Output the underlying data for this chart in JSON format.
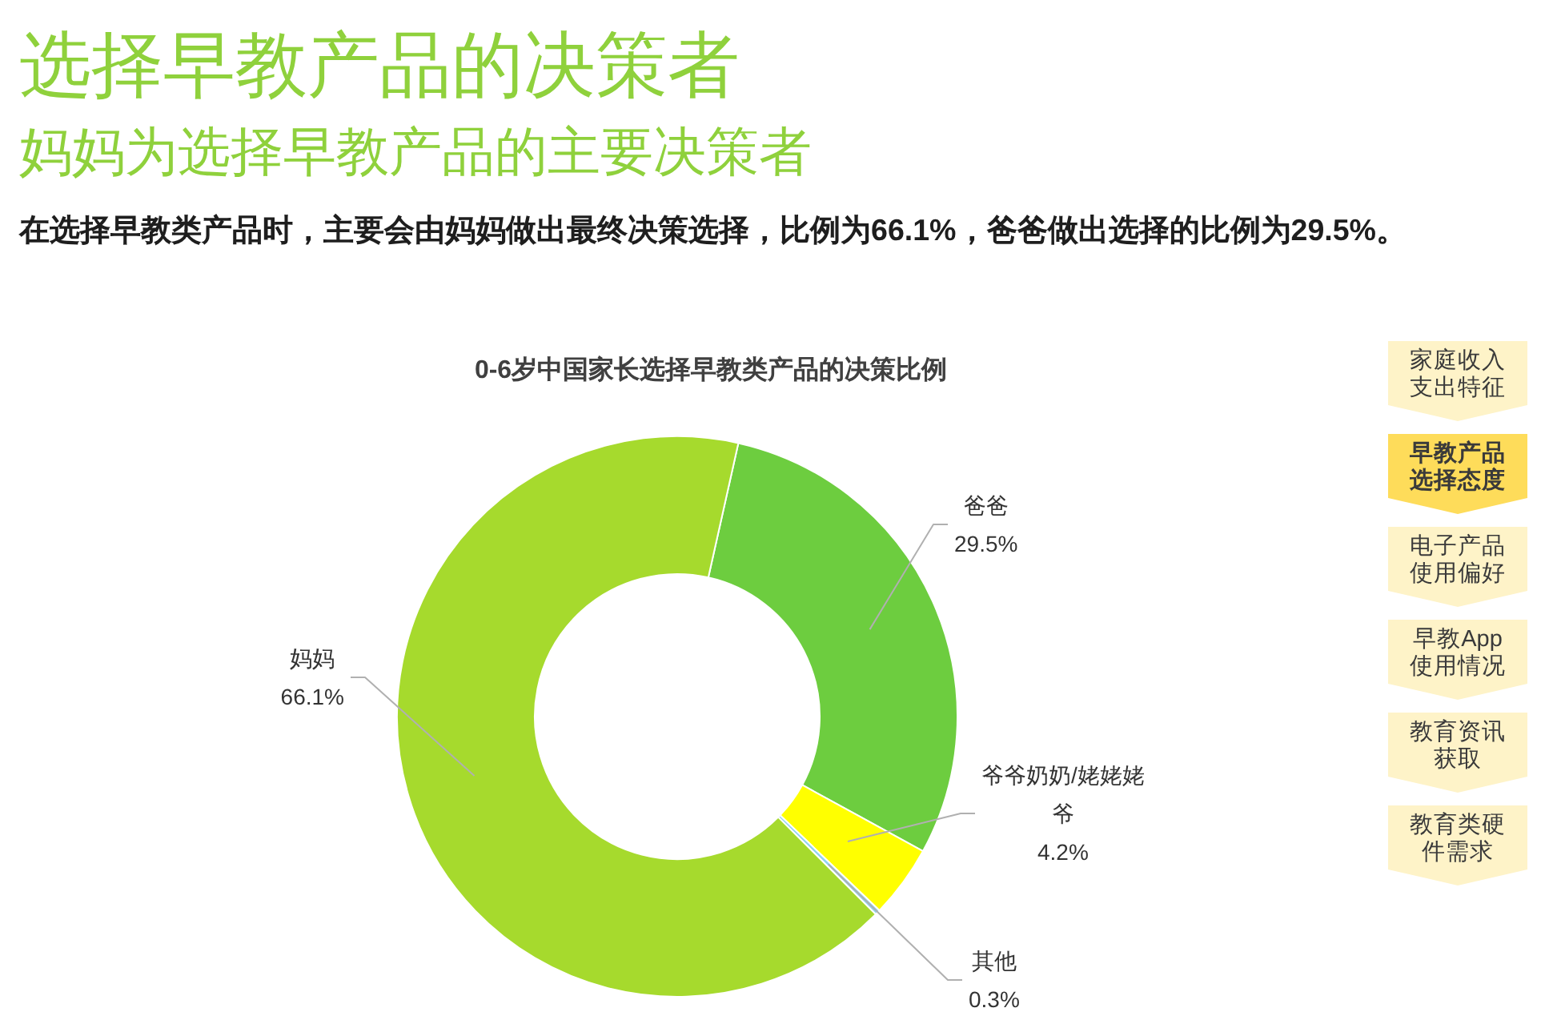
{
  "chart_data": [
    {
      "type": "donut",
      "title": "选择早教产品的决策者",
      "subtitle": "妈妈为选择早教产品的主要决策者",
      "annotations": [
        "在选择早教类产品时，主要会由妈妈做出最终决策选择，比例为66.1%，爸爸做出选择的比例为29.5%。",
        "0-6岁中国家长选择早教类产品的决策比例"
      ],
      "categories": [
        "爸爸",
        "爷爷奶奶/姥姥姥爷",
        "其他",
        "妈妈"
      ],
      "values": [
        29.5,
        4.2,
        0.3,
        66.1
      ],
      "value_labels": [
        "29.5%",
        "4.2%",
        "0.3%",
        "66.1%"
      ],
      "colors": [
        "#6dcd3f",
        "#ffff00",
        "#8fd3f0",
        "#a6da2d"
      ]
    },
    {
      "type": "other",
      "categories": [
        "家庭收入支出特征",
        "早教产品选择态度",
        "电子产品使用偏好",
        "早教App使用情况",
        "教育资讯获取",
        "教育类硬件需求"
      ],
      "colors": [
        "#fef3c8",
        "#fedc5a",
        "#fef3c8",
        "#fef3c8",
        "#fef3c8",
        "#fef3c8"
      ]
    }
  ]
}
